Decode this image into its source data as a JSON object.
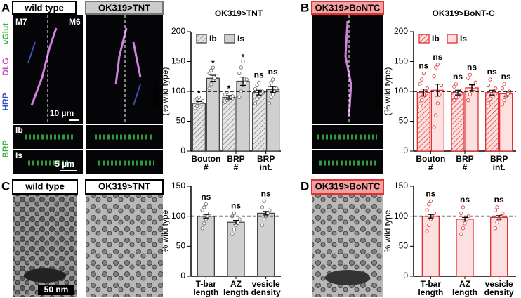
{
  "figure": {
    "panels": [
      "A",
      "B",
      "C",
      "D"
    ],
    "conditions": {
      "wt_a": "wild type",
      "tnt_a": "OK319>TNT",
      "bont_b": "OK319>BoNTC",
      "wt_c": "wild type",
      "tnt_c": "OK319>TNT",
      "bont_d": "OK319>BoNTC"
    },
    "muscles": [
      "M7",
      "M6"
    ],
    "stains": [
      "vGlut",
      "DLG",
      "HRP",
      "BRP"
    ],
    "strips": [
      "Ib",
      "Is"
    ],
    "scalebars": [
      "10 µm",
      "5 µm",
      "50 nm"
    ]
  },
  "chart_data": [
    {
      "type": "bar",
      "title": "OK319>TNT",
      "ylabel": [
        "Bouton #",
        "(% wild type)"
      ],
      "categories": [
        [
          "Bouton",
          "#"
        ],
        [
          "BRP",
          "#"
        ],
        [
          "BRP",
          "int."
        ]
      ],
      "ylim": [
        0,
        200
      ],
      "yticks": [
        0,
        50,
        100,
        150,
        200
      ],
      "refline": 100,
      "theme": "grey",
      "series": [
        {
          "name": "Ib",
          "color": "#d0d0d0",
          "hatch": true,
          "values": [
            80,
            90,
            98
          ],
          "errors": [
            3,
            3,
            4
          ],
          "labels": [
            "*",
            "*",
            "ns"
          ],
          "points": [
            [
              72,
              76,
              80,
              82,
              84,
              86,
              88,
              90
            ],
            [
              82,
              85,
              88,
              90,
              92,
              95,
              98
            ],
            [
              80,
              88,
              92,
              96,
              100,
              104,
              110,
              115
            ]
          ]
        },
        {
          "name": "Is",
          "color": "#d0d0d0",
          "hatch": false,
          "values": [
            122,
            117,
            103
          ],
          "errors": [
            5,
            7,
            5
          ],
          "labels": [
            "*",
            "*",
            "ns"
          ],
          "points": [
            [
              105,
              112,
              118,
              122,
              126,
              130,
              135,
              140
            ],
            [
              90,
              100,
              110,
              115,
              120,
              130,
              140,
              150
            ],
            [
              80,
              90,
              95,
              100,
              105,
              110,
              115,
              120
            ]
          ]
        }
      ]
    },
    {
      "type": "bar",
      "title": "OK319>BoNT-C",
      "ylabel": [
        "Bouton #",
        "(% wild type)"
      ],
      "categories": [
        [
          "Bouton",
          "#"
        ],
        [
          "BRP",
          "#"
        ],
        [
          "BRP",
          "int."
        ]
      ],
      "ylim": [
        0,
        200
      ],
      "yticks": [
        0,
        50,
        100,
        150,
        200
      ],
      "refline": 100,
      "theme": "red",
      "series": [
        {
          "name": "Ib",
          "color": "#fde0e0",
          "hatch": true,
          "values": [
            98,
            98,
            98
          ],
          "errors": [
            6,
            4,
            4
          ],
          "labels": [
            "ns",
            "ns",
            "ns"
          ],
          "points": [
            [
              75,
              85,
              95,
              100,
              105,
              112,
              120,
              130
            ],
            [
              85,
              90,
              95,
              98,
              102,
              108,
              112
            ],
            [
              80,
              88,
              95,
              100,
              105,
              110,
              120
            ]
          ]
        },
        {
          "name": "Is",
          "color": "#fde0e0",
          "hatch": false,
          "values": [
            102,
            106,
            96
          ],
          "errors": [
            10,
            5,
            4
          ],
          "labels": [
            "ns",
            "ns",
            "ns"
          ],
          "points": [
            [
              40,
              60,
              80,
              95,
              110,
              125,
              140,
              145
            ],
            [
              85,
              95,
              100,
              108,
              115,
              122,
              128
            ],
            [
              78,
              85,
              92,
              96,
              100,
              105,
              112
            ]
          ]
        }
      ]
    },
    {
      "type": "bar",
      "ylabel": [
        "% wild type"
      ],
      "categories": [
        [
          "T-bar",
          "length"
        ],
        [
          "AZ",
          "length"
        ],
        [
          "vesicle",
          "density"
        ]
      ],
      "ylim": [
        0,
        150
      ],
      "yticks": [
        0,
        50,
        100,
        150
      ],
      "refline": 100,
      "theme": "grey",
      "series": [
        {
          "color": "#d0d0d0",
          "hatch": false,
          "values": [
            100,
            90,
            105
          ],
          "errors": [
            3,
            3,
            3
          ],
          "labels": [
            "ns",
            "ns",
            "ns"
          ],
          "points": [
            [
              80,
              88,
              95,
              100,
              105,
              110,
              115,
              120
            ],
            [
              70,
              78,
              85,
              90,
              95,
              100,
              105
            ],
            [
              85,
              95,
              100,
              105,
              110,
              115,
              125
            ]
          ]
        }
      ]
    },
    {
      "type": "bar",
      "ylabel": [
        "% wild type"
      ],
      "categories": [
        [
          "T-bar",
          "length"
        ],
        [
          "AZ",
          "length"
        ],
        [
          "vesicle",
          "density"
        ]
      ],
      "ylim": [
        0,
        150
      ],
      "yticks": [
        0,
        50,
        100,
        150
      ],
      "refline": 100,
      "theme": "red",
      "series": [
        {
          "color": "#fde0e0",
          "hatch": false,
          "values": [
            100,
            95,
            98
          ],
          "errors": [
            3,
            3,
            3
          ],
          "labels": [
            "ns",
            "ns",
            "ns"
          ],
          "points": [
            [
              75,
              85,
              95,
              100,
              105,
              110,
              120,
              125
            ],
            [
              70,
              80,
              88,
              95,
              100,
              105,
              115
            ],
            [
              80,
              90,
              95,
              100,
              105,
              110,
              115
            ]
          ]
        }
      ]
    }
  ]
}
